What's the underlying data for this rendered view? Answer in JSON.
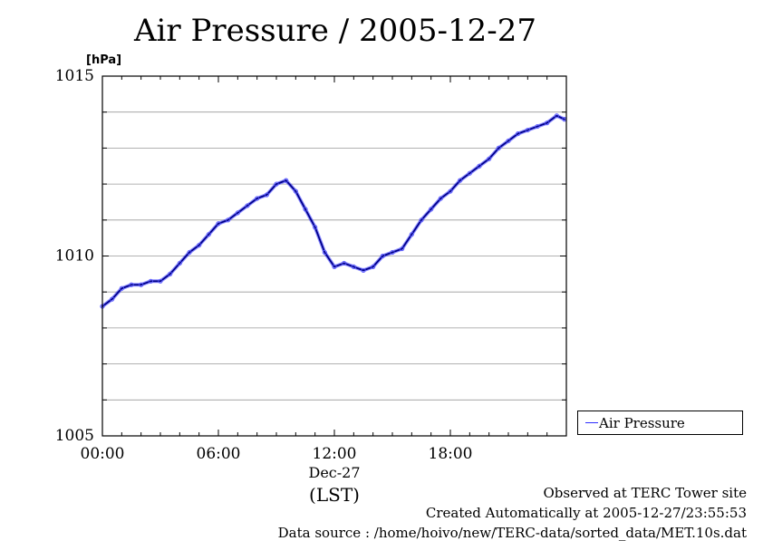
{
  "chart_data": {
    "type": "line",
    "title": "Air Pressure / 2005-12-27",
    "ylabel": "[hPa]",
    "xlabel": "(LST)",
    "x_date_label": "Dec-27",
    "ylim": [
      1005,
      1015
    ],
    "y_ticks": [
      "1005",
      "1010",
      "1015"
    ],
    "xlim": [
      "00:00",
      "24:00"
    ],
    "x_ticks": [
      "00:00",
      "06:00",
      "12:00",
      "18:00"
    ],
    "grid": true,
    "legend": "right-bottom",
    "series": [
      {
        "name": "Air Pressure",
        "color": "#2d2dff",
        "x_hours": [
          0.0,
          0.5,
          1.0,
          1.5,
          2.0,
          2.5,
          3.0,
          3.5,
          4.0,
          4.5,
          5.0,
          5.5,
          6.0,
          6.5,
          7.0,
          7.5,
          8.0,
          8.5,
          9.0,
          9.5,
          10.0,
          10.5,
          11.0,
          11.5,
          12.0,
          12.5,
          13.0,
          13.5,
          14.0,
          14.5,
          15.0,
          15.5,
          16.0,
          16.5,
          17.0,
          17.5,
          18.0,
          18.5,
          19.0,
          19.5,
          20.0,
          20.5,
          21.0,
          21.5,
          22.0,
          22.5,
          23.0,
          23.5,
          23.9
        ],
        "values": [
          1008.6,
          1008.8,
          1009.1,
          1009.2,
          1009.2,
          1009.3,
          1009.3,
          1009.5,
          1009.8,
          1010.1,
          1010.3,
          1010.6,
          1010.9,
          1011.0,
          1011.2,
          1011.4,
          1011.6,
          1011.7,
          1012.0,
          1012.1,
          1011.8,
          1011.3,
          1010.8,
          1010.1,
          1009.7,
          1009.8,
          1009.7,
          1009.6,
          1009.7,
          1010.0,
          1010.1,
          1010.2,
          1010.6,
          1011.0,
          1011.3,
          1011.6,
          1011.8,
          1012.1,
          1012.3,
          1012.5,
          1012.7,
          1013.0,
          1013.2,
          1013.4,
          1013.5,
          1013.6,
          1013.7,
          1013.9,
          1013.8
        ]
      }
    ]
  },
  "footer": {
    "observed": "Observed at TERC Tower site",
    "created": "Created Automatically at 2005-12-27/23:55:53",
    "source": "Data source : /home/hoivo/new/TERC-data/sorted_data/MET.10s.dat"
  }
}
